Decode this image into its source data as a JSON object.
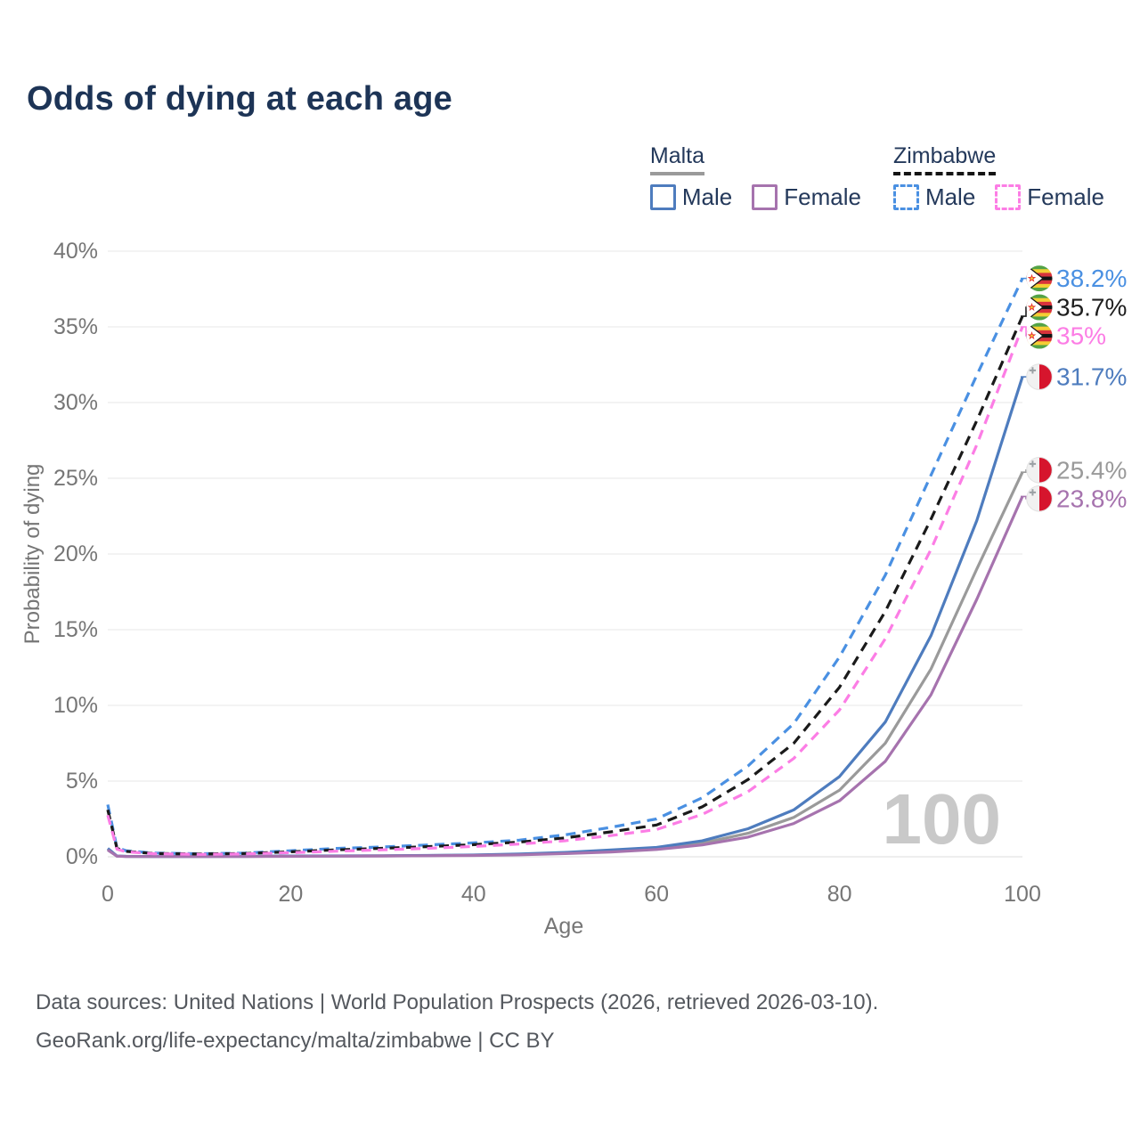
{
  "title": "Odds of dying at each age",
  "legend": {
    "groups": [
      {
        "country": "Malta",
        "line_style": "solid",
        "underline_color": "#9a9a9a",
        "items": [
          {
            "label": "Male",
            "color": "#4e7cbe",
            "style": "solid"
          },
          {
            "label": "Female",
            "color": "#a673ae",
            "style": "solid"
          }
        ]
      },
      {
        "country": "Zimbabwe",
        "line_style": "dashed",
        "underline_color": "#141414",
        "items": [
          {
            "label": "Male",
            "color": "#4a90e2",
            "style": "dashed"
          },
          {
            "label": "Female",
            "color": "#fc7de5",
            "style": "dashed"
          }
        ]
      }
    ]
  },
  "chart_data": {
    "type": "line",
    "title": "Odds of dying at each age",
    "xlabel": "Age",
    "ylabel": "Probability of dying",
    "xlim": [
      0,
      100
    ],
    "ylim": [
      0,
      40
    ],
    "grid": "horizontal",
    "legend_position": "top-right",
    "x_ticks": {
      "values": [
        0,
        20,
        40,
        60,
        80,
        100
      ],
      "labels": [
        "0",
        "20",
        "40",
        "60",
        "80",
        "100"
      ]
    },
    "y_ticks": {
      "values": [
        0,
        5,
        10,
        15,
        20,
        25,
        30,
        35,
        40
      ],
      "labels": [
        "0%",
        "5%",
        "10%",
        "15%",
        "20%",
        "25%",
        "30%",
        "35%",
        "40%"
      ]
    },
    "ages": [
      0,
      1,
      2,
      5,
      10,
      15,
      20,
      25,
      30,
      35,
      40,
      45,
      50,
      55,
      60,
      65,
      70,
      75,
      80,
      85,
      90,
      95,
      100
    ],
    "series": [
      {
        "name": "Malta (all)",
        "country": "Malta",
        "sex": "all",
        "color": "#9a9a9a",
        "dash": false,
        "values": [
          0.5,
          0.04,
          0.03,
          0.02,
          0.02,
          0.03,
          0.04,
          0.05,
          0.06,
          0.08,
          0.11,
          0.16,
          0.25,
          0.38,
          0.55,
          0.9,
          1.55,
          2.6,
          4.4,
          7.5,
          12.4,
          19.0,
          25.4
        ]
      },
      {
        "name": "Malta Male",
        "country": "Malta",
        "sex": "male",
        "color": "#4e7cbe",
        "dash": false,
        "values": [
          0.55,
          0.05,
          0.03,
          0.02,
          0.02,
          0.03,
          0.05,
          0.06,
          0.07,
          0.09,
          0.12,
          0.18,
          0.29,
          0.45,
          0.62,
          1.05,
          1.85,
          3.1,
          5.3,
          8.9,
          14.6,
          22.2,
          31.7
        ]
      },
      {
        "name": "Malta Female",
        "country": "Malta",
        "sex": "female",
        "color": "#a673ae",
        "dash": false,
        "values": [
          0.45,
          0.04,
          0.02,
          0.02,
          0.015,
          0.02,
          0.03,
          0.04,
          0.05,
          0.07,
          0.09,
          0.13,
          0.21,
          0.32,
          0.48,
          0.78,
          1.3,
          2.2,
          3.7,
          6.3,
          10.7,
          17.0,
          23.8
        ]
      },
      {
        "name": "Zimbabwe Male",
        "country": "Zimbabwe",
        "sex": "male",
        "color": "#4a90e2",
        "dash": true,
        "values": [
          3.45,
          0.6,
          0.4,
          0.25,
          0.2,
          0.25,
          0.4,
          0.55,
          0.65,
          0.78,
          0.92,
          1.1,
          1.45,
          1.95,
          2.5,
          3.9,
          6.0,
          8.8,
          13.2,
          18.6,
          25.2,
          31.8,
          38.2
        ]
      },
      {
        "name": "Zimbabwe (all)",
        "country": "Zimbabwe",
        "sex": "all",
        "color": "#1a1a1a",
        "dash": true,
        "values": [
          3.1,
          0.55,
          0.36,
          0.22,
          0.18,
          0.22,
          0.33,
          0.46,
          0.56,
          0.67,
          0.8,
          0.97,
          1.25,
          1.65,
          2.1,
          3.3,
          5.1,
          7.5,
          11.2,
          16.2,
          22.3,
          28.8,
          35.7
        ]
      },
      {
        "name": "Zimbabwe Female",
        "country": "Zimbabwe",
        "sex": "female",
        "color": "#fc7de5",
        "dash": true,
        "values": [
          2.75,
          0.5,
          0.33,
          0.2,
          0.16,
          0.19,
          0.27,
          0.37,
          0.46,
          0.56,
          0.68,
          0.84,
          1.06,
          1.4,
          1.8,
          2.8,
          4.3,
          6.5,
          9.7,
          14.4,
          20.3,
          27.2,
          35.0
        ]
      }
    ]
  },
  "end_labels": [
    {
      "series": "Zimbabwe Male",
      "display": "38.2%",
      "value": 38.2,
      "color": "#4a90e2",
      "flag": "zw"
    },
    {
      "series": "Zimbabwe (all)",
      "display": "35.7%",
      "value": 35.7,
      "color": "#1e1e1e",
      "flag": "zw"
    },
    {
      "series": "Zimbabwe Female",
      "display": "35%",
      "value": 35.0,
      "color": "#fc7de5",
      "flag": "zw"
    },
    {
      "series": "Malta Male",
      "display": "31.7%",
      "value": 31.7,
      "color": "#4e7cbe",
      "flag": "mt"
    },
    {
      "series": "Malta (all)",
      "display": "25.4%",
      "value": 25.4,
      "color": "#9a9a9a",
      "flag": "mt"
    },
    {
      "series": "Malta Female",
      "display": "23.8%",
      "value": 23.8,
      "color": "#a673ae",
      "flag": "mt"
    }
  ],
  "watermark": "100",
  "footer": {
    "line1": "Data sources: United Nations | World Population Prospects (2026, retrieved 2026-03-10).",
    "line2": "GeoRank.org/life-expectancy/malta/zimbabwe | CC BY"
  }
}
